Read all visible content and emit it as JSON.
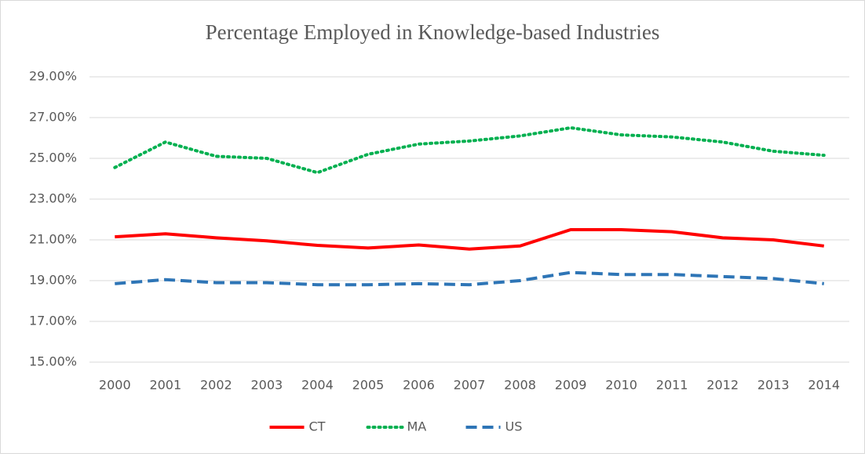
{
  "chart_data": {
    "type": "line",
    "title": "Percentage Employed in Knowledge-based Industries",
    "categories": [
      "2000",
      "2001",
      "2002",
      "2003",
      "2004",
      "2005",
      "2006",
      "2007",
      "2008",
      "2009",
      "2010",
      "2011",
      "2012",
      "2013",
      "2014"
    ],
    "series": [
      {
        "name": "CT",
        "color": "#ff0000",
        "dash": "solid",
        "values": [
          21.15,
          21.3,
          21.1,
          20.95,
          20.73,
          20.6,
          20.75,
          20.55,
          20.7,
          21.5,
          21.5,
          21.4,
          21.1,
          21.0,
          20.7
        ]
      },
      {
        "name": "MA",
        "color": "#00b050",
        "dash": "dotted",
        "values": [
          24.55,
          25.8,
          25.1,
          25.0,
          24.3,
          25.2,
          25.7,
          25.85,
          26.1,
          26.5,
          26.15,
          26.05,
          25.8,
          25.35,
          25.15
        ]
      },
      {
        "name": "US",
        "color": "#2e75b6",
        "dash": "dashed",
        "values": [
          18.85,
          19.05,
          18.9,
          18.9,
          18.8,
          18.8,
          18.85,
          18.8,
          19.0,
          19.4,
          19.3,
          19.3,
          19.2,
          19.1,
          18.85
        ]
      }
    ],
    "ylim": [
      15,
      29
    ],
    "yticks": [
      {
        "value": 15,
        "label": "15.00%"
      },
      {
        "value": 17,
        "label": "17.00%"
      },
      {
        "value": 19,
        "label": "19.00%"
      },
      {
        "value": 21,
        "label": "21.00%"
      },
      {
        "value": 23,
        "label": "23.00%"
      },
      {
        "value": 25,
        "label": "25.00%"
      },
      {
        "value": 27,
        "label": "27.00%"
      },
      {
        "value": 29,
        "label": "29.00%"
      }
    ],
    "grid": true,
    "legend": "bottom"
  }
}
